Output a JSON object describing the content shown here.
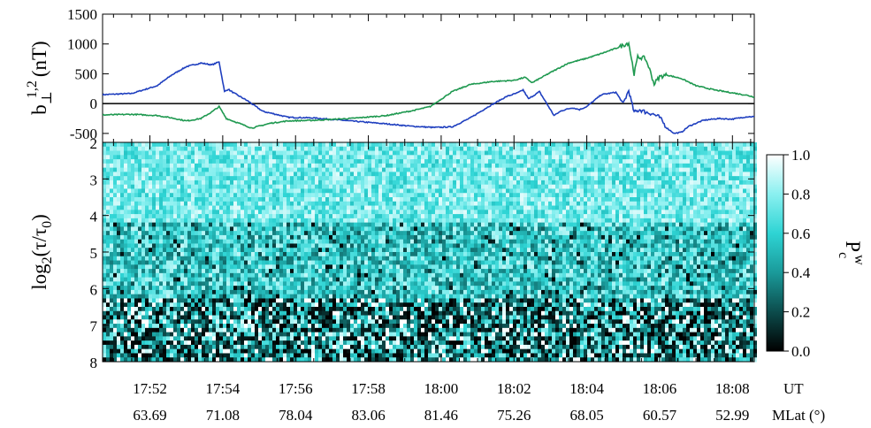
{
  "chart_data": [
    {
      "type": "line",
      "ylabel": {
        "base": "b",
        "sub": "⊥",
        "sup": "1,2",
        "unit": "(nT)"
      },
      "ylim": [
        -650,
        1500
      ],
      "yticks": [
        -500,
        0,
        500,
        1000,
        1500
      ],
      "zero_line": true,
      "x_range_minutes": [
        -9.3,
        8.6
      ],
      "series": [
        {
          "color": "#1f3fbf",
          "x": [
            -9.3,
            -8.5,
            -7.8,
            -7.4,
            -7.0,
            -6.6,
            -6.3,
            -6.1,
            -5.95,
            -5.85,
            -5.7,
            -5.3,
            -4.9,
            -4.6,
            -4.2,
            -3.5,
            -2.5,
            -1.5,
            -0.8,
            -0.2,
            0.3,
            0.8,
            1.3,
            1.8,
            2.1,
            2.25,
            2.4,
            2.7,
            3.1,
            3.3,
            3.6,
            3.8,
            4.0,
            4.4,
            4.8,
            5.0,
            5.15,
            5.3,
            5.45,
            5.6,
            5.8,
            6.0,
            6.2,
            6.4,
            6.6,
            6.8,
            7.2,
            7.6,
            8.0,
            8.4,
            8.6
          ],
          "y": [
            150,
            170,
            300,
            480,
            620,
            680,
            650,
            700,
            200,
            240,
            180,
            40,
            -130,
            -170,
            -230,
            -240,
            -290,
            -340,
            -380,
            -400,
            -390,
            -240,
            -50,
            120,
            180,
            230,
            80,
            200,
            -200,
            -120,
            -70,
            -100,
            -50,
            150,
            190,
            0,
            220,
            -150,
            -100,
            -140,
            -170,
            -230,
            -410,
            -500,
            -480,
            -380,
            -280,
            -250,
            -260,
            -220,
            -220
          ]
        },
        {
          "color": "#1f9950",
          "x": [
            -9.3,
            -8.5,
            -7.8,
            -7.4,
            -7.0,
            -6.6,
            -6.3,
            -6.1,
            -5.9,
            -5.6,
            -5.2,
            -4.7,
            -4.2,
            -3.5,
            -2.5,
            -1.5,
            -0.8,
            -0.3,
            0.3,
            0.8,
            1.4,
            2.0,
            2.3,
            2.5,
            3.0,
            3.5,
            4.0,
            4.5,
            4.9,
            5.15,
            5.3,
            5.4,
            5.6,
            5.7,
            5.85,
            6.0,
            6.2,
            6.6,
            7.0,
            7.5,
            8.0,
            8.4,
            8.6
          ],
          "y": [
            -190,
            -180,
            -200,
            -240,
            -290,
            -250,
            -140,
            -50,
            -250,
            -320,
            -410,
            -330,
            -290,
            -280,
            -250,
            -200,
            -120,
            -50,
            200,
            320,
            370,
            390,
            440,
            350,
            520,
            680,
            760,
            860,
            950,
            1020,
            500,
            780,
            760,
            620,
            330,
            450,
            480,
            420,
            300,
            230,
            180,
            140,
            110
          ]
        }
      ]
    },
    {
      "type": "heatmap",
      "ylabel": {
        "base": "log",
        "sub": "2",
        "rest": "(τ/τ",
        "sub2": "0",
        "end": ")"
      },
      "ylim": [
        2,
        8
      ],
      "yticks": [
        2,
        3,
        4,
        5,
        6,
        7,
        8
      ],
      "colorbar": {
        "label": {
          "base": "P",
          "sub": "c",
          "sup": "w"
        },
        "range": [
          0.0,
          1.0
        ],
        "ticks": [
          "0.0",
          "0.2",
          "0.4",
          "0.6",
          "0.8",
          "1.0"
        ],
        "colors": [
          "#000000",
          "#0c4c4c",
          "#1a9a9a",
          "#2ed4d4",
          "#8af0f0",
          "#ffffff"
        ]
      }
    }
  ],
  "x_axis": {
    "ticks_minutes": [
      -8,
      -6,
      -4,
      -2,
      0,
      2,
      4,
      6,
      8
    ],
    "ut_labels": [
      "17:52",
      "17:54",
      "17:56",
      "17:58",
      "18:00",
      "18:02",
      "18:04",
      "18:06",
      "18:08"
    ],
    "mlat_labels": [
      "63.69",
      "71.08",
      "78.04",
      "83.06",
      "81.46",
      "75.26",
      "68.05",
      "60.57",
      "52.99"
    ],
    "ut_unit": "UT",
    "mlat_unit": "MLat (°)"
  }
}
